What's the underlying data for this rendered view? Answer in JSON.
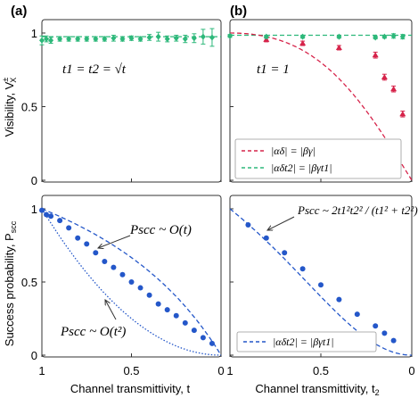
{
  "panel_labels": [
    "(a)",
    "(b)"
  ],
  "y_labels": {
    "top": "Visibility, V",
    "top_super": "±",
    "top_sub": "X",
    "bottom": "Success probability, P",
    "bottom_sub": "scc"
  },
  "x_labels": {
    "left": "Channel transmittivity, t",
    "right": "Channel transmittivity, t",
    "right_sub": "2"
  },
  "annotations": {
    "a_top": "t1 = t2 = √t",
    "b_top": "t1 = 1",
    "a_bot_1": "Pscc ~ O(t)",
    "a_bot_2": "Pscc ~ O(t²)",
    "b_bot": "Pscc ~ 2t1²t2² / (t1² + t2²)"
  },
  "legend_b_top": [
    {
      "name": "|αδ| = |βγ|",
      "color": "#d6234a"
    },
    {
      "name": "|αδt2| = |βγt1|",
      "color": "#2db87a"
    }
  ],
  "legend_b_bot": [
    {
      "name": "|αδt2| = |βγt1|",
      "color": "#2457c9"
    }
  ],
  "colors": {
    "green": "#2db87a",
    "red": "#d6234a",
    "blue": "#2457c9"
  },
  "chart_data": [
    {
      "panel": "a-top",
      "type": "scatter",
      "xlim": [
        1,
        0
      ],
      "ylim": [
        0,
        1
      ],
      "y_ticks": [
        "0",
        "0.5",
        "1"
      ],
      "series": [
        {
          "name": "|αδt2| = |βγt1|",
          "color": "#2db87a",
          "x": [
            1.0,
            0.975,
            0.95,
            0.9,
            0.85,
            0.8,
            0.75,
            0.7,
            0.65,
            0.6,
            0.55,
            0.5,
            0.45,
            0.4,
            0.35,
            0.3,
            0.25,
            0.2,
            0.15,
            0.1,
            0.05
          ],
          "y": [
            0.95,
            0.96,
            0.95,
            0.96,
            0.96,
            0.96,
            0.96,
            0.96,
            0.96,
            0.965,
            0.96,
            0.965,
            0.96,
            0.97,
            0.975,
            0.96,
            0.965,
            0.96,
            0.965,
            0.975,
            0.97
          ],
          "err": [
            0.03,
            0.02,
            0.02,
            0.015,
            0.015,
            0.015,
            0.015,
            0.015,
            0.015,
            0.02,
            0.015,
            0.015,
            0.015,
            0.02,
            0.03,
            0.02,
            0.02,
            0.025,
            0.03,
            0.05,
            0.06
          ]
        }
      ],
      "reference_line": {
        "y": 0.975,
        "color": "#2db87a",
        "style": "dashed"
      }
    },
    {
      "panel": "b-top",
      "type": "scatter",
      "xlim": [
        1,
        0
      ],
      "ylim": [
        0,
        1
      ],
      "series": [
        {
          "name": "|αδ| = |βγ|",
          "color": "#d6234a",
          "x": [
            0.8,
            0.6,
            0.4,
            0.2,
            0.15,
            0.1,
            0.05
          ],
          "y": [
            0.955,
            0.93,
            0.9,
            0.85,
            0.7,
            0.62,
            0.45
          ],
          "err": [
            0.015,
            0.015,
            0.015,
            0.02,
            0.02,
            0.02,
            0.02
          ]
        },
        {
          "name": "|αδt2| = |βγt1|",
          "color": "#2db87a",
          "x": [
            1.0,
            0.8,
            0.6,
            0.4,
            0.2,
            0.15,
            0.1,
            0.05
          ],
          "y": [
            0.98,
            0.975,
            0.975,
            0.975,
            0.97,
            0.975,
            0.98,
            0.975
          ],
          "err": [
            0.01,
            0.01,
            0.01,
            0.01,
            0.01,
            0.01,
            0.015,
            0.015
          ]
        }
      ],
      "legend_position": "bottom-left"
    },
    {
      "panel": "a-bottom",
      "type": "scatter",
      "xlim": [
        1,
        0
      ],
      "ylim": [
        0,
        1
      ],
      "x_ticks": [
        "1",
        "0.5",
        "0"
      ],
      "y_ticks": [
        "0",
        "0.5",
        "1"
      ],
      "series": [
        {
          "name": "data",
          "color": "#2457c9",
          "x": [
            1.0,
            0.975,
            0.95,
            0.9,
            0.85,
            0.8,
            0.75,
            0.7,
            0.65,
            0.6,
            0.55,
            0.5,
            0.45,
            0.4,
            0.35,
            0.3,
            0.25,
            0.2,
            0.15,
            0.1,
            0.05
          ],
          "y": [
            0.99,
            0.96,
            0.95,
            0.92,
            0.87,
            0.8,
            0.76,
            0.7,
            0.64,
            0.6,
            0.55,
            0.5,
            0.46,
            0.41,
            0.35,
            0.31,
            0.27,
            0.22,
            0.17,
            0.12,
            0.08
          ]
        }
      ]
    },
    {
      "panel": "b-bottom",
      "type": "scatter",
      "xlim": [
        1,
        0
      ],
      "ylim": [
        0,
        1
      ],
      "x_ticks": [
        "1",
        "0.5",
        "0"
      ],
      "series": [
        {
          "name": "|αδt2| = |βγt1|",
          "color": "#2457c9",
          "x": [
            0.9,
            0.8,
            0.7,
            0.6,
            0.5,
            0.4,
            0.3,
            0.2,
            0.15,
            0.1
          ],
          "y": [
            0.89,
            0.8,
            0.7,
            0.59,
            0.48,
            0.38,
            0.28,
            0.2,
            0.15,
            0.1
          ]
        }
      ],
      "legend_position": "bottom-center"
    }
  ]
}
